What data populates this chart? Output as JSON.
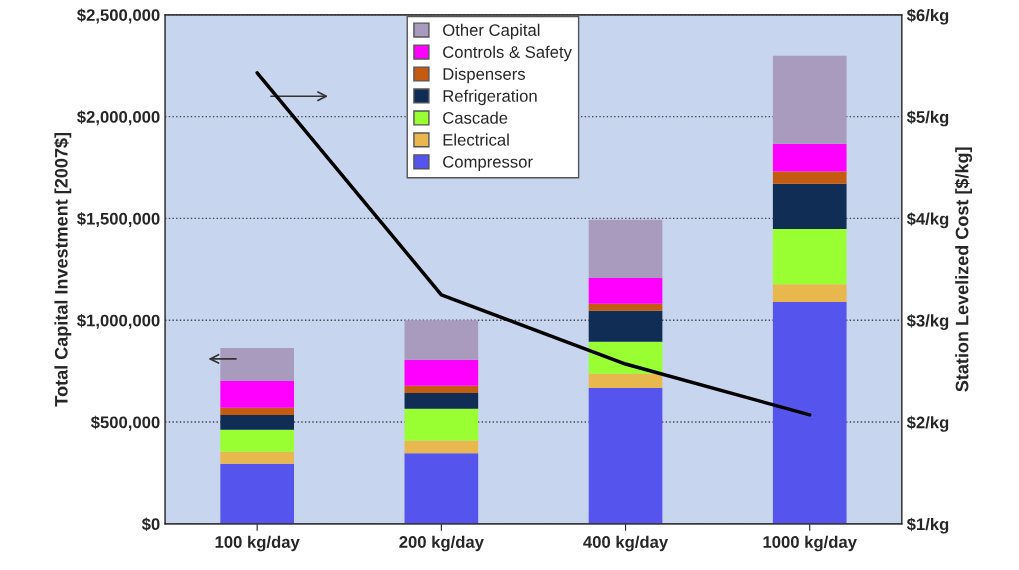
{
  "chart_data": {
    "type": "bar",
    "stacked": true,
    "categories": [
      "100 kg/day",
      "200 kg/day",
      "400 kg/day",
      "1000 kg/day"
    ],
    "ylabel": "Total Capital Investment [2007$]",
    "y2label": "Station Levelized Cost [$/kg]",
    "ylim": [
      0,
      2500000
    ],
    "yticks": [
      {
        "value": 0,
        "label": "$0"
      },
      {
        "value": 500000,
        "label": "$500,000"
      },
      {
        "value": 1000000,
        "label": "$1,000,000"
      },
      {
        "value": 1500000,
        "label": "$1,500,000"
      },
      {
        "value": 2000000,
        "label": "$2,000,000"
      },
      {
        "value": 2500000,
        "label": "$2,500,000"
      }
    ],
    "y2lim": [
      1,
      6
    ],
    "y2ticks": [
      {
        "value": 1,
        "label": "$1/kg"
      },
      {
        "value": 2,
        "label": "$2/kg"
      },
      {
        "value": 3,
        "label": "$3/kg"
      },
      {
        "value": 4,
        "label": "$4/kg"
      },
      {
        "value": 5,
        "label": "$5/kg"
      },
      {
        "value": 6,
        "label": "$6/kg"
      }
    ],
    "grid": "y",
    "legend": "top",
    "series": [
      {
        "name": "Compressor",
        "color": "#5555ee",
        "values": [
          295000,
          347000,
          667000,
          1090000
        ]
      },
      {
        "name": "Electrical",
        "color": "#e8b84f",
        "values": [
          59000,
          62000,
          70000,
          87000
        ]
      },
      {
        "name": "Cascade",
        "color": "#99ff33",
        "values": [
          108000,
          156000,
          157000,
          271000
        ]
      },
      {
        "name": "Refrigeration",
        "color": "#0f2d55",
        "values": [
          73000,
          77000,
          152000,
          222000
        ]
      },
      {
        "name": "Dispensers",
        "color": "#c55a11",
        "values": [
          35000,
          36000,
          35000,
          61000
        ]
      },
      {
        "name": "Controls & Safety",
        "color": "#ff00ff",
        "values": [
          132000,
          128000,
          127000,
          136000
        ]
      },
      {
        "name": "Other Capital",
        "color": "#a99bbd",
        "values": [
          162000,
          194000,
          285000,
          432000
        ]
      },
      {
        "type": "line",
        "axis": "y2",
        "color": "#000000",
        "values": [
          5.43,
          3.25,
          2.57,
          2.07
        ]
      }
    ]
  }
}
